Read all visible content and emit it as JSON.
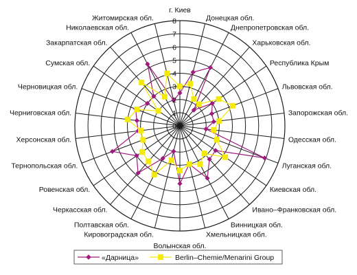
{
  "chart_data": {
    "type": "radar",
    "categories": [
      "г. Киев",
      "Донецкая обл.",
      "Днепропетровская обл.",
      "Харьковская обл.",
      "Республика Крым",
      "Львовская обл.",
      "Запорожская обл.",
      "Одесская обл.",
      "Луганская обл.",
      "Киевская обл.",
      "Ивано–Франковская обл.",
      "Винницкая обл.",
      "Хмельницкая обл.",
      "Волынская обл.",
      "Кировоградская обл.",
      "Полтавская обл.",
      "Черкасская обл.",
      "Ровенская обл.",
      "Тернопольская обл.",
      "Херсонская обл.",
      "Черниговская обл.",
      "Черновицкая обл.",
      "Сумская обл.",
      "Закарпатская обл.",
      "Николаевская обл.",
      "Житомирская обл."
    ],
    "series": [
      {
        "name": "«Дарница»",
        "color": "#a0197e",
        "marker": "diamond",
        "values": [
          2.5,
          4.2,
          5.0,
          1.6,
          3.0,
          2.6,
          2.6,
          2.0,
          6.9,
          3.3,
          3.4,
          4.5,
          3.0,
          4.4,
          2.0,
          2.8,
          4.8,
          4.0,
          5.5,
          3.2,
          3.3,
          3.6,
          3.0,
          3.0,
          5.3,
          2.0
        ]
      },
      {
        "name": "Berlin–Chemie/Menarini Group",
        "color": "#f4ea0a",
        "marker": "square",
        "values": [
          3.0,
          3.3,
          2.3,
          2.2,
          3.6,
          4.3,
          3.0,
          2.6,
          3.0,
          4.2,
          2.8,
          3.3,
          3.0,
          3.4,
          2.7,
          4.2,
          3.6,
          3.5,
          3.0,
          3.0,
          4.0,
          3.5,
          2.0,
          4.4,
          2.5,
          4.1
        ]
      }
    ],
    "rlim": [
      0,
      8
    ],
    "ticks": [
      "0",
      "1",
      "2",
      "3",
      "4",
      "5",
      "6",
      "7",
      "8"
    ],
    "grid": true,
    "legend": "bottom"
  }
}
